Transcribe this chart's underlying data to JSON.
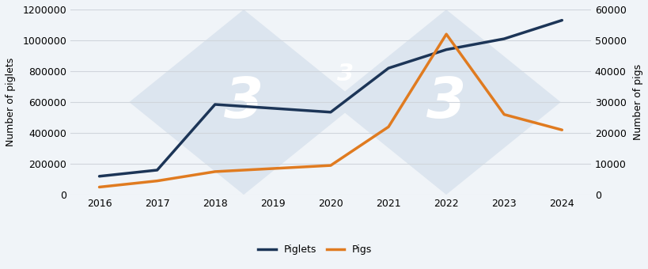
{
  "years": [
    2016,
    2017,
    2018,
    2019,
    2020,
    2021,
    2022,
    2023,
    2024
  ],
  "piglets": [
    120000,
    160000,
    585000,
    560000,
    535000,
    820000,
    940000,
    1010000,
    1130000
  ],
  "pigs": [
    2500,
    4500,
    7500,
    8500,
    9500,
    22000,
    52000,
    26000,
    21000
  ],
  "piglets_color": "#1c3557",
  "pigs_color": "#e07b20",
  "background_color": "#f0f4f8",
  "plot_bg_color": "#f0f4f8",
  "grid_color": "#d0d5dc",
  "ylabel_left": "Number of piglets",
  "ylabel_right": "Number of pigs",
  "ylim_left": [
    0,
    1200000
  ],
  "ylim_right": [
    0,
    60000
  ],
  "yticks_left": [
    0,
    200000,
    400000,
    600000,
    800000,
    1000000,
    1200000
  ],
  "yticks_right": [
    0,
    10000,
    20000,
    30000,
    40000,
    50000,
    60000
  ],
  "legend_labels": [
    "Piglets",
    "Pigs"
  ],
  "line_width": 2.5,
  "watermark_diamond_color": "#dce5ef",
  "watermark_text_color": "#ffffff",
  "watermark_alpha": 1.0,
  "tick_fontsize": 9,
  "label_fontsize": 9,
  "legend_fontsize": 9
}
